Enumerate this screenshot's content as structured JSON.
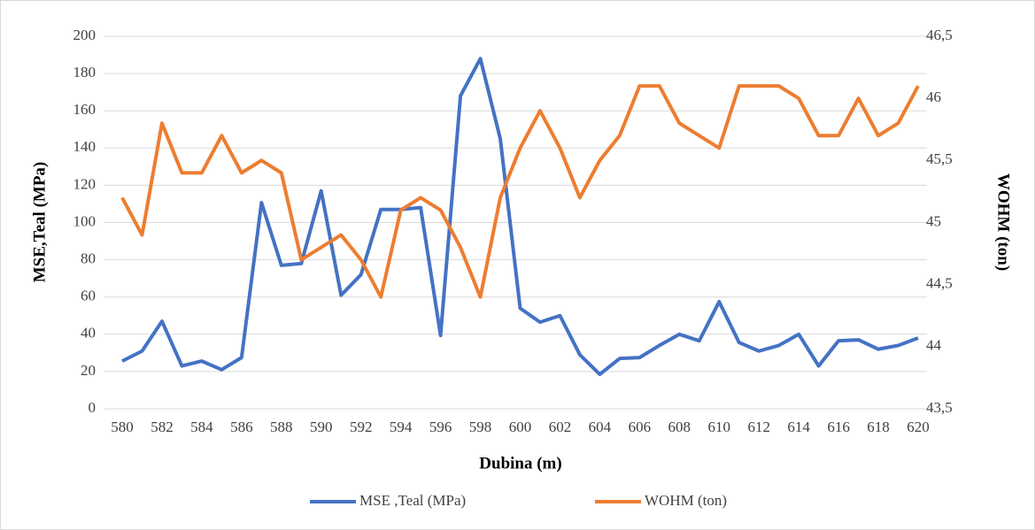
{
  "chart_data": {
    "type": "line",
    "x_label": "Dubina (m)",
    "y_label": "MSE,Teal (MPa)",
    "y2_label": "WOHM (ton)",
    "x": [
      580,
      581,
      582,
      583,
      584,
      585,
      586,
      587,
      588,
      589,
      590,
      591,
      592,
      593,
      594,
      595,
      596,
      597,
      598,
      599,
      600,
      601,
      602,
      603,
      604,
      605,
      606,
      607,
      608,
      609,
      610,
      611,
      612,
      613,
      614,
      615,
      616,
      617,
      618,
      619,
      620
    ],
    "xlim": [
      580,
      620
    ],
    "xticks": [
      580,
      582,
      584,
      586,
      588,
      590,
      592,
      594,
      596,
      598,
      600,
      602,
      604,
      606,
      608,
      610,
      612,
      614,
      616,
      618,
      620
    ],
    "ylim": [
      0,
      200
    ],
    "yticks": [
      0,
      20,
      40,
      60,
      80,
      100,
      120,
      140,
      160,
      180,
      200
    ],
    "y2lim": [
      43.5,
      46.5
    ],
    "y2ticks": [
      {
        "value": 43.5,
        "label": "43,5"
      },
      44,
      {
        "value": 44.5,
        "label": "44,5"
      },
      45,
      {
        "value": 45.5,
        "label": "45,5"
      },
      46,
      {
        "value": 46.5,
        "label": "46,5"
      }
    ],
    "grid": true,
    "legend": "bottom",
    "series": [
      {
        "name": "MSE ,Teal (MPa)",
        "color": "#4472c4",
        "values": [
          25.6,
          31,
          47,
          23,
          25.6,
          21,
          27.5,
          110.7,
          77,
          78,
          117,
          61,
          72,
          107,
          107,
          108,
          39.4,
          168,
          188,
          145,
          54,
          46.5,
          50,
          29,
          18.5,
          27,
          27.5,
          34,
          40,
          36.5,
          57.5,
          35.6,
          31,
          34,
          40,
          23,
          36.5,
          37,
          32,
          34,
          38
        ]
      },
      {
        "name": "WOHM (ton)",
        "color": "#ed7d31",
        "axis": "y2",
        "values": [
          45.2,
          44.9,
          45.8,
          45.4,
          45.4,
          45.7,
          45.4,
          45.5,
          45.4,
          44.7,
          44.8,
          44.9,
          44.7,
          44.4,
          45.1,
          45.2,
          45.1,
          44.8,
          44.4,
          45.2,
          45.6,
          45.9,
          45.6,
          45.2,
          45.5,
          45.7,
          46.1,
          46.1,
          45.8,
          45.7,
          45.6,
          46.1,
          46.1,
          46.1,
          46,
          45.7,
          45.7,
          46,
          45.7,
          45.8,
          46.1
        ]
      }
    ]
  }
}
